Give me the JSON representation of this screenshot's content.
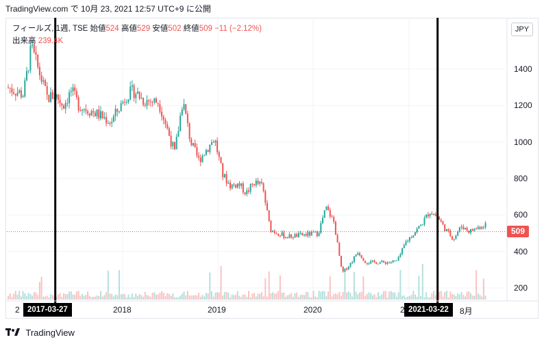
{
  "header": {
    "source_line": "TradingView.com で 10月 23, 2021 12:57 UTC+9 に公開"
  },
  "legend": {
    "symbol": "フィールズ, 1週, TSE",
    "open_label": "始値",
    "open": "524",
    "high_label": "高値",
    "high": "529",
    "low_label": "安値",
    "low": "502",
    "close_label": "終値",
    "close": "509",
    "change": "−11 (−2.12%)",
    "volume_label": "出来高",
    "volume": "239.4K"
  },
  "currency_button": "JPY",
  "last_price_tag": "509",
  "markers": [
    {
      "label": "2017-03-27"
    },
    {
      "label": "2021-03-22"
    }
  ],
  "footer": {
    "brand": "TradingView"
  },
  "colors": {
    "up": "#26a69a",
    "down": "#ef5350",
    "marker": "#000000",
    "grid": "#f0f3fa"
  },
  "chart_data": {
    "type": "candlestick",
    "ylim": [
      130,
      1600
    ],
    "yticks": [
      "1400",
      "1200",
      "1000",
      "800",
      "600",
      "400",
      "200"
    ],
    "ytick_values": [
      1400,
      1200,
      1000,
      800,
      600,
      400,
      200
    ],
    "xticks": [
      "2",
      "2018",
      "2019",
      "2020",
      "2",
      "8月"
    ],
    "last_price": 509,
    "grid": true,
    "anchors": [
      [
        "2016-09",
        1300
      ],
      [
        "2016-11",
        1260
      ],
      [
        "2016-12",
        1520
      ],
      [
        "2017-01",
        1380
      ],
      [
        "2017-02",
        1240
      ],
      [
        "2017-03",
        1260
      ],
      [
        "2017-04",
        1200
      ],
      [
        "2017-05",
        1280
      ],
      [
        "2017-06",
        1200
      ],
      [
        "2017-08",
        1160
      ],
      [
        "2017-10",
        1110
      ],
      [
        "2017-12",
        1260
      ],
      [
        "2018-01",
        1280
      ],
      [
        "2018-02",
        1230
      ],
      [
        "2018-04",
        1220
      ],
      [
        "2018-05",
        1080
      ],
      [
        "2018-06",
        940
      ],
      [
        "2018-07",
        1230
      ],
      [
        "2018-08",
        1000
      ],
      [
        "2018-09",
        900
      ],
      [
        "2018-11",
        1020
      ],
      [
        "2018-12",
        820
      ],
      [
        "2019-01",
        760
      ],
      [
        "2019-02",
        770
      ],
      [
        "2019-03",
        720
      ],
      [
        "2019-04",
        780
      ],
      [
        "2019-05",
        760
      ],
      [
        "2019-06",
        520
      ],
      [
        "2019-08",
        480
      ],
      [
        "2019-10",
        490
      ],
      [
        "2019-12",
        500
      ],
      [
        "2020-01",
        640
      ],
      [
        "2020-02",
        560
      ],
      [
        "2020-03",
        280
      ],
      [
        "2020-04",
        330
      ],
      [
        "2020-05",
        400
      ],
      [
        "2020-06",
        340
      ],
      [
        "2020-07",
        340
      ],
      [
        "2020-09",
        340
      ],
      [
        "2020-10",
        350
      ],
      [
        "2020-11",
        450
      ],
      [
        "2021-01",
        550
      ],
      [
        "2021-02",
        620
      ],
      [
        "2021-03",
        590
      ],
      [
        "2021-04",
        520
      ],
      [
        "2021-05",
        470
      ],
      [
        "2021-06",
        540
      ],
      [
        "2021-07",
        510
      ],
      [
        "2021-08",
        530
      ],
      [
        "2021-09",
        550
      ],
      [
        "2021-10",
        509
      ]
    ],
    "volume_note": "weekly volume bars along the bottom of the price pane"
  }
}
